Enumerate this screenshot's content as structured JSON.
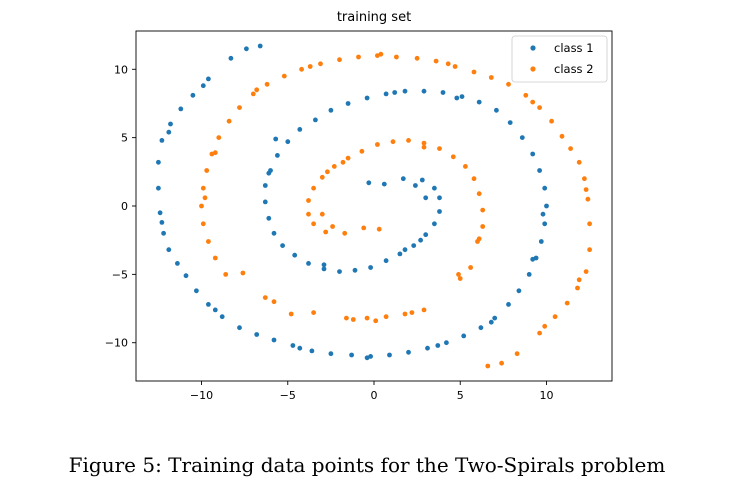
{
  "caption": "Figure 5: Training data points for the Two-Spirals problem",
  "chart_data": {
    "type": "scatter",
    "title": "training set",
    "xlabel": "",
    "ylabel": "",
    "xlim": [
      -13.8,
      13.8
    ],
    "ylim": [
      -12.8,
      12.8
    ],
    "xticks": [
      -10,
      -5,
      0,
      5,
      10
    ],
    "yticks": [
      -10,
      -5,
      0,
      5,
      10
    ],
    "grid": false,
    "legend_position": "top-right",
    "series": [
      {
        "name": "class 1",
        "color": "#1f77b4",
        "points": [
          [
            -6.6,
            11.7
          ],
          [
            -7.4,
            11.5
          ],
          [
            -8.3,
            10.8
          ],
          [
            -9.6,
            9.3
          ],
          [
            -10.5,
            8.1
          ],
          [
            -11.2,
            7.1
          ],
          [
            -11.8,
            6.0
          ],
          [
            -12.3,
            4.8
          ],
          [
            -12.5,
            3.2
          ],
          [
            -12.5,
            1.3
          ],
          [
            -12.4,
            -0.5
          ],
          [
            -12.2,
            -2.0
          ],
          [
            -11.9,
            -3.2
          ],
          [
            -11.4,
            -4.2
          ],
          [
            -10.9,
            -5.1
          ],
          [
            -10.3,
            -6.2
          ],
          [
            -9.6,
            -7.2
          ],
          [
            -8.8,
            -8.1
          ],
          [
            -7.8,
            -8.9
          ],
          [
            -6.8,
            -9.4
          ],
          [
            -5.8,
            -9.8
          ],
          [
            -4.7,
            -10.2
          ],
          [
            -3.6,
            -10.6
          ],
          [
            -2.5,
            -10.8
          ],
          [
            -1.3,
            -10.9
          ],
          [
            -0.2,
            -11.0
          ],
          [
            0.9,
            -10.9
          ],
          [
            2.0,
            -10.7
          ],
          [
            3.1,
            -10.4
          ],
          [
            4.2,
            -10.0
          ],
          [
            5.2,
            -9.5
          ],
          [
            6.2,
            -8.9
          ],
          [
            7.0,
            -8.2
          ],
          [
            7.8,
            -7.2
          ],
          [
            8.4,
            -6.2
          ],
          [
            9.0,
            -5.0
          ],
          [
            9.4,
            -3.8
          ],
          [
            9.7,
            -2.6
          ],
          [
            9.9,
            -1.3
          ],
          [
            10.0,
            0.0
          ],
          [
            9.9,
            1.3
          ],
          [
            9.6,
            2.6
          ],
          [
            9.2,
            3.8
          ],
          [
            8.6,
            5.0
          ],
          [
            7.9,
            6.1
          ],
          [
            7.1,
            7.0
          ],
          [
            6.1,
            7.6
          ],
          [
            5.1,
            8.0
          ],
          [
            4.0,
            8.3
          ],
          [
            2.9,
            8.4
          ],
          [
            1.8,
            8.4
          ],
          [
            0.7,
            8.2
          ],
          [
            -0.4,
            7.9
          ],
          [
            -1.5,
            7.5
          ],
          [
            -2.5,
            7.0
          ],
          [
            -3.4,
            6.3
          ],
          [
            -4.3,
            5.6
          ],
          [
            -5.0,
            4.7
          ],
          [
            -5.6,
            3.7
          ],
          [
            -6.0,
            2.6
          ],
          [
            -6.3,
            1.5
          ],
          [
            -6.3,
            0.3
          ],
          [
            -6.1,
            -0.9
          ],
          [
            -5.8,
            -2.0
          ],
          [
            -5.3,
            -2.9
          ],
          [
            -4.6,
            -3.6
          ],
          [
            -3.8,
            -4.2
          ],
          [
            -2.9,
            -4.6
          ],
          [
            -2.0,
            -4.8
          ],
          [
            -1.1,
            -4.7
          ],
          [
            -0.2,
            -4.5
          ],
          [
            0.7,
            -4.0
          ],
          [
            1.5,
            -3.5
          ],
          [
            2.3,
            -2.9
          ],
          [
            3.0,
            -2.1
          ],
          [
            3.5,
            -1.3
          ],
          [
            3.8,
            -0.4
          ],
          [
            3.8,
            0.6
          ],
          [
            3.5,
            1.3
          ],
          [
            2.8,
            1.9
          ],
          [
            1.7,
            2.0
          ],
          [
            0.6,
            1.6
          ],
          [
            -0.3,
            1.7
          ],
          [
            3.0,
            0.6
          ],
          [
            2.4,
            1.5
          ],
          [
            1.8,
            -3.2
          ],
          [
            2.7,
            -2.5
          ],
          [
            -2.9,
            -4.3
          ],
          [
            -6.1,
            2.4
          ],
          [
            -5.7,
            4.9
          ],
          [
            4.8,
            7.9
          ],
          [
            1.2,
            8.3
          ],
          [
            9.8,
            -0.6
          ],
          [
            9.2,
            -3.9
          ],
          [
            6.8,
            -8.5
          ],
          [
            3.7,
            -10.2
          ],
          [
            -4.3,
            -10.4
          ],
          [
            -9.2,
            -7.6
          ],
          [
            -12.3,
            -1.2
          ],
          [
            -11.9,
            5.4
          ],
          [
            -9.9,
            8.8
          ],
          [
            -0.4,
            -11.1
          ]
        ]
      },
      {
        "name": "class 2",
        "color": "#ff7f0e",
        "points": [
          [
            6.6,
            -11.7
          ],
          [
            7.4,
            -11.5
          ],
          [
            8.3,
            -10.8
          ],
          [
            9.6,
            -9.3
          ],
          [
            10.5,
            -8.1
          ],
          [
            11.2,
            -7.1
          ],
          [
            11.8,
            -6.0
          ],
          [
            12.3,
            -4.8
          ],
          [
            12.5,
            -3.2
          ],
          [
            12.5,
            -1.3
          ],
          [
            12.4,
            0.5
          ],
          [
            12.2,
            2.0
          ],
          [
            11.9,
            3.2
          ],
          [
            11.4,
            4.2
          ],
          [
            10.9,
            5.1
          ],
          [
            10.3,
            6.2
          ],
          [
            9.6,
            7.2
          ],
          [
            8.8,
            8.1
          ],
          [
            7.8,
            8.9
          ],
          [
            6.8,
            9.4
          ],
          [
            5.8,
            9.8
          ],
          [
            4.7,
            10.2
          ],
          [
            3.6,
            10.6
          ],
          [
            2.5,
            10.8
          ],
          [
            1.3,
            10.9
          ],
          [
            0.2,
            11.0
          ],
          [
            -0.9,
            10.9
          ],
          [
            -2.0,
            10.7
          ],
          [
            -3.1,
            10.4
          ],
          [
            -4.2,
            10.0
          ],
          [
            -5.2,
            9.5
          ],
          [
            -6.2,
            8.9
          ],
          [
            -7.0,
            8.2
          ],
          [
            -7.8,
            7.2
          ],
          [
            -8.4,
            6.2
          ],
          [
            -9.0,
            5.0
          ],
          [
            -9.4,
            3.8
          ],
          [
            -9.7,
            2.6
          ],
          [
            -9.9,
            1.3
          ],
          [
            -10.0,
            0.0
          ],
          [
            -9.9,
            -1.3
          ],
          [
            -9.6,
            -2.6
          ],
          [
            -9.2,
            -3.8
          ],
          [
            -8.6,
            -5.0
          ],
          [
            -6.3,
            -6.7
          ],
          [
            -5.8,
            -7.0
          ],
          [
            -3.5,
            -7.8
          ],
          [
            -1.6,
            -8.2
          ],
          [
            -0.4,
            -8.2
          ],
          [
            0.7,
            -8.1
          ],
          [
            1.8,
            -7.9
          ],
          [
            2.9,
            -7.6
          ],
          [
            5.0,
            -5.3
          ],
          [
            5.6,
            -4.5
          ],
          [
            6.0,
            -2.6
          ],
          [
            6.3,
            -1.5
          ],
          [
            6.3,
            -0.3
          ],
          [
            6.1,
            0.9
          ],
          [
            5.8,
            2.0
          ],
          [
            5.3,
            2.9
          ],
          [
            4.6,
            3.6
          ],
          [
            3.8,
            4.2
          ],
          [
            2.9,
            4.6
          ],
          [
            2.0,
            4.8
          ],
          [
            1.1,
            4.7
          ],
          [
            0.2,
            4.5
          ],
          [
            -0.7,
            4.0
          ],
          [
            -1.5,
            3.5
          ],
          [
            -2.3,
            2.9
          ],
          [
            -3.0,
            2.1
          ],
          [
            -3.5,
            1.3
          ],
          [
            -3.8,
            0.4
          ],
          [
            -3.8,
            -0.6
          ],
          [
            -3.5,
            -1.3
          ],
          [
            -2.8,
            -1.9
          ],
          [
            -1.7,
            -2.0
          ],
          [
            -0.6,
            -1.6
          ],
          [
            0.3,
            -1.7
          ],
          [
            -3.0,
            -0.6
          ],
          [
            -2.4,
            -1.5
          ],
          [
            -1.8,
            3.2
          ],
          [
            -2.7,
            2.5
          ],
          [
            2.9,
            4.3
          ],
          [
            6.1,
            -2.4
          ],
          [
            -4.8,
            -7.9
          ],
          [
            -1.2,
            -8.3
          ],
          [
            -9.8,
            0.6
          ],
          [
            -9.2,
            3.9
          ],
          [
            -6.8,
            8.5
          ],
          [
            -3.7,
            10.2
          ],
          [
            4.3,
            10.4
          ],
          [
            9.2,
            7.6
          ],
          [
            12.3,
            1.2
          ],
          [
            11.9,
            -5.4
          ],
          [
            9.9,
            -8.8
          ],
          [
            0.4,
            11.1
          ],
          [
            -7.6,
            -4.9
          ],
          [
            4.9,
            -5.0
          ],
          [
            0.1,
            -8.4
          ],
          [
            2.2,
            -7.8
          ]
        ]
      }
    ]
  }
}
